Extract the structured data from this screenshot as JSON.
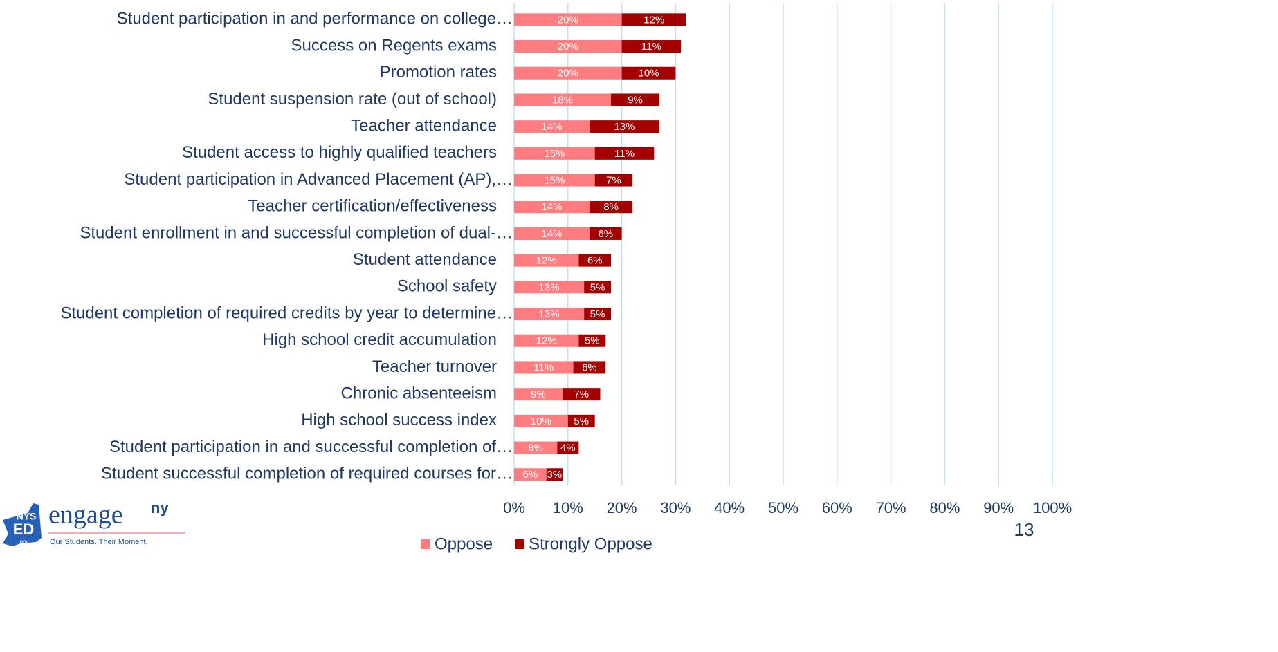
{
  "chart_data": {
    "type": "stacked-barh",
    "categories": [
      "Student participation in and performance on college…",
      "Success on Regents exams",
      "Promotion rates",
      "Student suspension rate (out of school)",
      "Teacher attendance",
      "Student access to highly qualified teachers",
      "Student participation in Advanced Placement (AP),…",
      "Teacher certification/effectiveness",
      "Student enrollment in and successful completion of dual-…",
      "Student attendance",
      "School safety",
      "Student completion of required credits by year to determine…",
      "High school credit accumulation",
      "Teacher turnover",
      "Chronic absenteeism",
      "High school success index",
      "Student participation in and successful completion of…",
      "Student successful completion of required courses for…"
    ],
    "series": [
      {
        "name": "Oppose",
        "color": "#ff7c80",
        "values": [
          20,
          20,
          20,
          18,
          14,
          15,
          15,
          14,
          14,
          12,
          13,
          13,
          12,
          11,
          9,
          10,
          8,
          6
        ],
        "value_labels": [
          "20%",
          "20%",
          "20%",
          "18%",
          "14%",
          "15%",
          "15%",
          "14%",
          "14%",
          "12%",
          "13%",
          "13%",
          "12%",
          "11%",
          "9%",
          "10%",
          "8%",
          "6%"
        ]
      },
      {
        "name": "Strongly Oppose",
        "color": "#a50000",
        "values": [
          12,
          11,
          10,
          9,
          13,
          11,
          7,
          8,
          6,
          6,
          5,
          5,
          5,
          6,
          7,
          5,
          4,
          3
        ],
        "value_labels": [
          "12%",
          "11%",
          "10%",
          "9%",
          "13%",
          "11%",
          "7%",
          "8%",
          "6%",
          "6%",
          "5%",
          "5%",
          "5%",
          "6%",
          "7%",
          "5%",
          "4%",
          "3%"
        ]
      }
    ],
    "xlim": [
      0,
      100
    ],
    "xticks": [
      {
        "value": 0,
        "label": "0%"
      },
      {
        "value": 10,
        "label": "10%"
      },
      {
        "value": 20,
        "label": "20%"
      },
      {
        "value": 30,
        "label": "30%"
      },
      {
        "value": 40,
        "label": "40%"
      },
      {
        "value": 50,
        "label": "50%"
      },
      {
        "value": 60,
        "label": "60%"
      },
      {
        "value": 70,
        "label": "70%"
      },
      {
        "value": 80,
        "label": "80%"
      },
      {
        "value": 90,
        "label": "90%"
      },
      {
        "value": 100,
        "label": "100%"
      }
    ],
    "grid": true,
    "legend": "bottom"
  },
  "page_number": "13",
  "logo": {
    "state": "NYS",
    "dept": "ED",
    "domain": ".gov",
    "brand": "engage",
    "brand_sup": "ny",
    "tagline": "Our Students. Their Moment."
  }
}
